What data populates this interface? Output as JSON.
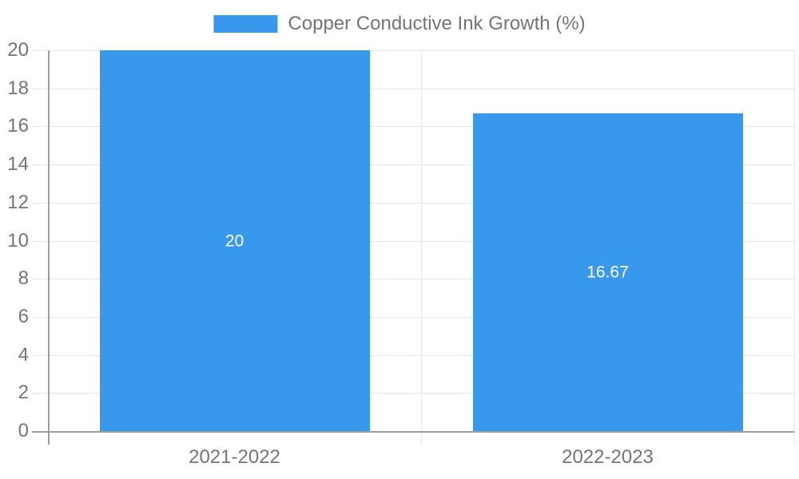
{
  "chart_data": {
    "type": "bar",
    "title": "Copper Conductive Ink Growth (%)",
    "categories": [
      "2021-2022",
      "2022-2023"
    ],
    "series": [
      {
        "name": "Copper Conductive Ink Growth (%)",
        "values": [
          20,
          16.67
        ]
      }
    ],
    "value_labels": [
      "20",
      "16.67"
    ],
    "xlabel": "",
    "ylabel": "",
    "ylim": [
      0,
      20
    ],
    "yticks": [
      0,
      2,
      4,
      6,
      8,
      10,
      12,
      14,
      16,
      18,
      20
    ],
    "grid": true,
    "legend_position": "top-center",
    "colors": {
      "bar": "#3898ec",
      "grid_line": "#e6e6e6",
      "axis_line": "#9e9e9e",
      "tick_label": "#757575",
      "value_label": "#ffffff",
      "background": "#ffffff"
    }
  }
}
